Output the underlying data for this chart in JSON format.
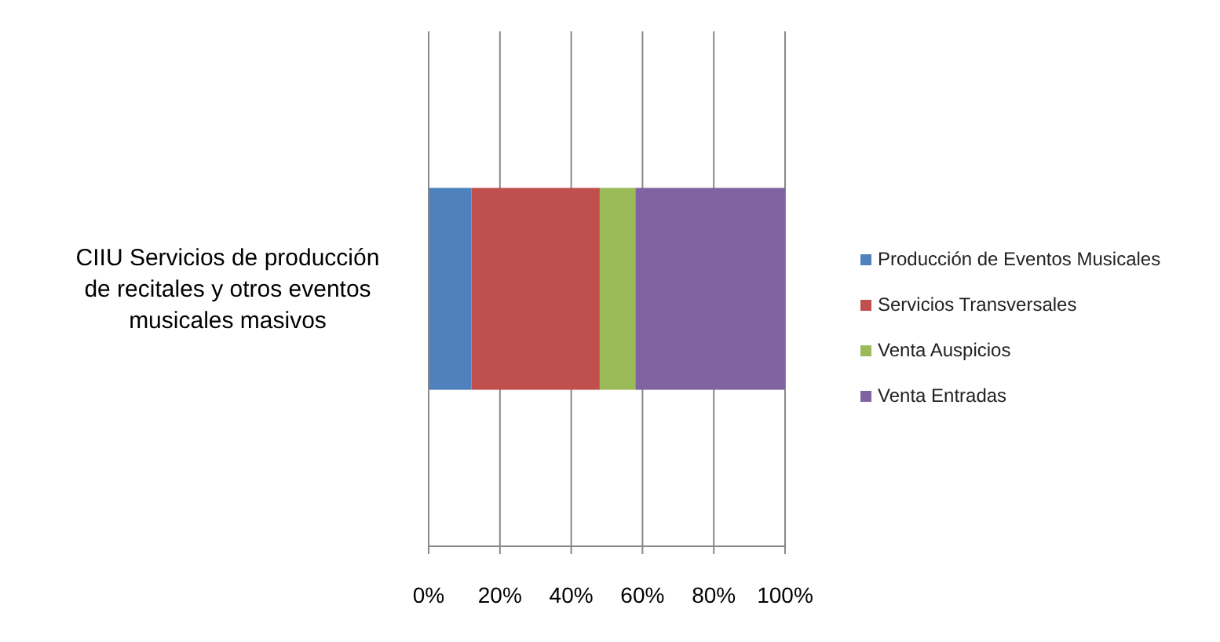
{
  "chart_data": {
    "type": "bar",
    "orientation": "horizontal",
    "stacked": true,
    "categories": [
      "CIIU Servicios de producción de recitales y otros eventos musicales masivos"
    ],
    "series": [
      {
        "name": "Producción de Eventos Musicales",
        "color": "#4f81bd",
        "values": [
          12
        ]
      },
      {
        "name": "Servicios Transversales",
        "color": "#c0504d",
        "values": [
          36
        ]
      },
      {
        "name": "Venta Auspicios",
        "color": "#9bbb59",
        "values": [
          10
        ]
      },
      {
        "name": "Venta Entradas",
        "color": "#8064a2",
        "values": [
          42
        ]
      }
    ],
    "xlim": [
      0,
      100
    ],
    "xticks": [
      {
        "value": 0,
        "label": "0%"
      },
      {
        "value": 20,
        "label": "20%"
      },
      {
        "value": 40,
        "label": "40%"
      },
      {
        "value": 60,
        "label": "60%"
      },
      {
        "value": 80,
        "label": "80%"
      },
      {
        "value": 100,
        "label": "100%"
      }
    ],
    "grid": "x",
    "legend": "right"
  }
}
